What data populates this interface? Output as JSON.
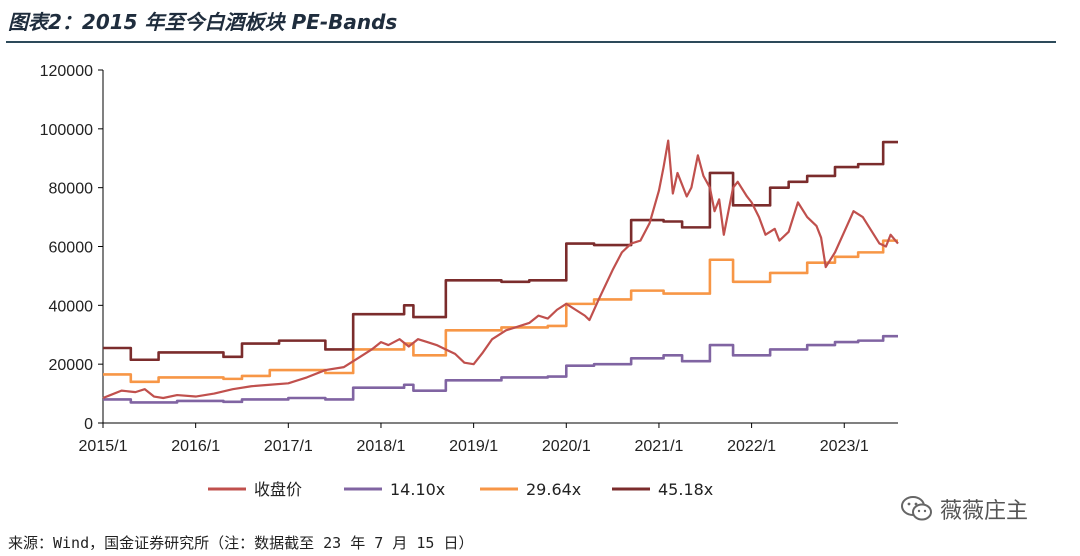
{
  "title": "图表2：2015 年至今白酒板块 PE-Bands",
  "source": "来源：Wind，国金证券研究所（注：数据截至 23 年 7 月 15 日）",
  "watermark": {
    "text": "薇薇庄主",
    "icon": "wechat-icon"
  },
  "colors": {
    "close": "#c0504d",
    "pe14": "#8064a2",
    "pe29": "#f79646",
    "pe45": "#7b2c2c",
    "title_rule": "#2d4a5a",
    "axis": "#000000"
  },
  "chart_data": {
    "type": "line",
    "ylim": [
      0,
      120000
    ],
    "yticks": [
      "0",
      "20000",
      "40000",
      "60000",
      "80000",
      "100000",
      "120000"
    ],
    "xlim": [
      2015.0,
      2023.58
    ],
    "xticks": [
      {
        "v": 2015.0,
        "label": "2015/1"
      },
      {
        "v": 2016.0,
        "label": "2016/1"
      },
      {
        "v": 2017.0,
        "label": "2017/1"
      },
      {
        "v": 2018.0,
        "label": "2018/1"
      },
      {
        "v": 2019.0,
        "label": "2019/1"
      },
      {
        "v": 2020.0,
        "label": "2020/1"
      },
      {
        "v": 2021.0,
        "label": "2021/1"
      },
      {
        "v": 2022.0,
        "label": "2022/1"
      },
      {
        "v": 2023.0,
        "label": "2023/1"
      }
    ],
    "legend_position": "bottom",
    "series": [
      {
        "key": "close",
        "name": "收盘价",
        "color": "#c0504d",
        "step": false,
        "points": [
          [
            2015.0,
            8500
          ],
          [
            2015.08,
            9500
          ],
          [
            2015.2,
            11000
          ],
          [
            2015.35,
            10500
          ],
          [
            2015.45,
            11500
          ],
          [
            2015.55,
            9000
          ],
          [
            2015.65,
            8500
          ],
          [
            2015.8,
            9500
          ],
          [
            2016.0,
            9000
          ],
          [
            2016.2,
            10000
          ],
          [
            2016.4,
            11500
          ],
          [
            2016.6,
            12500
          ],
          [
            2016.8,
            13000
          ],
          [
            2017.0,
            13500
          ],
          [
            2017.2,
            15500
          ],
          [
            2017.4,
            18000
          ],
          [
            2017.6,
            19000
          ],
          [
            2017.75,
            22000
          ],
          [
            2017.9,
            25000
          ],
          [
            2018.0,
            27500
          ],
          [
            2018.08,
            26500
          ],
          [
            2018.2,
            28500
          ],
          [
            2018.3,
            26000
          ],
          [
            2018.4,
            28500
          ],
          [
            2018.5,
            27500
          ],
          [
            2018.6,
            26500
          ],
          [
            2018.7,
            25000
          ],
          [
            2018.8,
            23500
          ],
          [
            2018.9,
            20500
          ],
          [
            2019.0,
            20000
          ],
          [
            2019.1,
            24000
          ],
          [
            2019.2,
            28500
          ],
          [
            2019.35,
            31500
          ],
          [
            2019.5,
            33000
          ],
          [
            2019.6,
            34000
          ],
          [
            2019.7,
            36500
          ],
          [
            2019.8,
            35500
          ],
          [
            2019.9,
            38500
          ],
          [
            2020.0,
            40500
          ],
          [
            2020.1,
            38500
          ],
          [
            2020.2,
            36500
          ],
          [
            2020.25,
            35000
          ],
          [
            2020.35,
            42000
          ],
          [
            2020.5,
            52000
          ],
          [
            2020.6,
            58000
          ],
          [
            2020.7,
            61000
          ],
          [
            2020.8,
            62000
          ],
          [
            2020.9,
            68000
          ],
          [
            2021.0,
            79000
          ],
          [
            2021.05,
            87000
          ],
          [
            2021.1,
            96000
          ],
          [
            2021.15,
            78000
          ],
          [
            2021.2,
            85000
          ],
          [
            2021.3,
            77000
          ],
          [
            2021.35,
            80000
          ],
          [
            2021.42,
            91000
          ],
          [
            2021.48,
            84000
          ],
          [
            2021.55,
            80000
          ],
          [
            2021.6,
            72000
          ],
          [
            2021.65,
            76000
          ],
          [
            2021.7,
            64000
          ],
          [
            2021.8,
            80000
          ],
          [
            2021.85,
            82000
          ],
          [
            2021.95,
            77000
          ],
          [
            2022.0,
            75000
          ],
          [
            2022.08,
            70000
          ],
          [
            2022.15,
            64000
          ],
          [
            2022.25,
            66000
          ],
          [
            2022.3,
            62000
          ],
          [
            2022.4,
            65000
          ],
          [
            2022.5,
            75000
          ],
          [
            2022.6,
            70000
          ],
          [
            2022.7,
            67000
          ],
          [
            2022.75,
            63000
          ],
          [
            2022.8,
            53000
          ],
          [
            2022.9,
            58000
          ],
          [
            2023.0,
            65000
          ],
          [
            2023.1,
            72000
          ],
          [
            2023.2,
            70000
          ],
          [
            2023.3,
            65000
          ],
          [
            2023.38,
            61000
          ],
          [
            2023.45,
            60000
          ],
          [
            2023.5,
            64000
          ],
          [
            2023.58,
            61000
          ]
        ]
      },
      {
        "key": "pe14",
        "name": "14.10x",
        "color": "#8064a2",
        "step": true,
        "points": [
          [
            2015.0,
            8000
          ],
          [
            2015.3,
            7000
          ],
          [
            2015.8,
            7500
          ],
          [
            2016.3,
            7200
          ],
          [
            2016.5,
            8000
          ],
          [
            2017.0,
            8500
          ],
          [
            2017.4,
            8000
          ],
          [
            2017.7,
            12000
          ],
          [
            2018.25,
            13000
          ],
          [
            2018.35,
            11000
          ],
          [
            2018.7,
            14500
          ],
          [
            2019.3,
            15500
          ],
          [
            2019.8,
            15800
          ],
          [
            2020.0,
            19500
          ],
          [
            2020.3,
            20000
          ],
          [
            2020.7,
            22000
          ],
          [
            2021.05,
            23000
          ],
          [
            2021.25,
            21000
          ],
          [
            2021.55,
            26500
          ],
          [
            2021.8,
            23000
          ],
          [
            2022.2,
            25000
          ],
          [
            2022.6,
            26500
          ],
          [
            2022.9,
            27500
          ],
          [
            2023.15,
            28000
          ],
          [
            2023.42,
            29500
          ]
        ]
      },
      {
        "key": "pe29",
        "name": "29.64x",
        "color": "#f79646",
        "step": true,
        "points": [
          [
            2015.0,
            16500
          ],
          [
            2015.3,
            14000
          ],
          [
            2015.6,
            15500
          ],
          [
            2016.3,
            15000
          ],
          [
            2016.5,
            16000
          ],
          [
            2016.8,
            18000
          ],
          [
            2017.4,
            17000
          ],
          [
            2017.7,
            25000
          ],
          [
            2018.25,
            27000
          ],
          [
            2018.35,
            23000
          ],
          [
            2018.7,
            31500
          ],
          [
            2019.3,
            32500
          ],
          [
            2019.8,
            33000
          ],
          [
            2020.0,
            40500
          ],
          [
            2020.3,
            42000
          ],
          [
            2020.7,
            45000
          ],
          [
            2021.05,
            44000
          ],
          [
            2021.25,
            44000
          ],
          [
            2021.55,
            55500
          ],
          [
            2021.8,
            48000
          ],
          [
            2022.2,
            51000
          ],
          [
            2022.6,
            54500
          ],
          [
            2022.9,
            56500
          ],
          [
            2023.15,
            58000
          ],
          [
            2023.42,
            62000
          ]
        ]
      },
      {
        "key": "pe45",
        "name": "45.18x",
        "color": "#7b2c2c",
        "step": true,
        "points": [
          [
            2015.0,
            25500
          ],
          [
            2015.3,
            21500
          ],
          [
            2015.6,
            24000
          ],
          [
            2016.3,
            22500
          ],
          [
            2016.5,
            27000
          ],
          [
            2016.9,
            28000
          ],
          [
            2017.4,
            25000
          ],
          [
            2017.7,
            37000
          ],
          [
            2018.25,
            40000
          ],
          [
            2018.35,
            36000
          ],
          [
            2018.7,
            48500
          ],
          [
            2019.3,
            48000
          ],
          [
            2019.6,
            48500
          ],
          [
            2020.0,
            61000
          ],
          [
            2020.3,
            60500
          ],
          [
            2020.7,
            69000
          ],
          [
            2021.05,
            68500
          ],
          [
            2021.25,
            66500
          ],
          [
            2021.55,
            85000
          ],
          [
            2021.8,
            74000
          ],
          [
            2022.2,
            80000
          ],
          [
            2022.4,
            82000
          ],
          [
            2022.6,
            84000
          ],
          [
            2022.9,
            87000
          ],
          [
            2023.15,
            88000
          ],
          [
            2023.42,
            95500
          ]
        ]
      }
    ]
  }
}
